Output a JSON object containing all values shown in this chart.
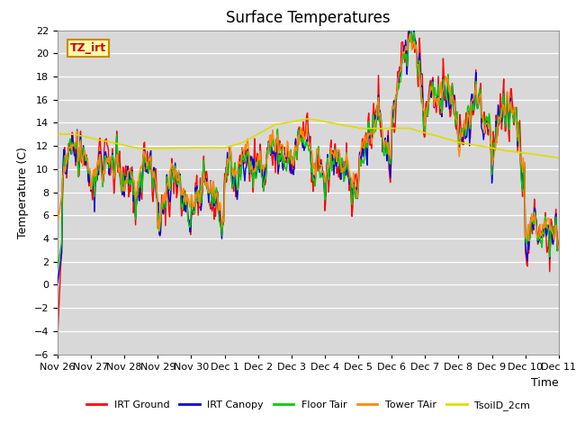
{
  "title": "Surface Temperatures",
  "xlabel": "Time",
  "ylabel": "Temperature (C)",
  "ylim": [
    -6,
    22
  ],
  "yticks": [
    -6,
    -4,
    -2,
    0,
    2,
    4,
    6,
    8,
    10,
    12,
    14,
    16,
    18,
    20,
    22
  ],
  "plot_bg_color": "#d8d8d8",
  "annotation_text": "TZ_irt",
  "annotation_bg": "#ffffaa",
  "annotation_border": "#cc8800",
  "legend_entries": [
    "IRT Ground",
    "IRT Canopy",
    "Floor Tair",
    "Tower TAir",
    "TsoilD_2cm"
  ],
  "line_colors": [
    "#ff0000",
    "#0000dd",
    "#00cc00",
    "#ff8800",
    "#dddd00"
  ],
  "x_tick_labels": [
    "Nov 26",
    "Nov 27",
    "Nov 28",
    "Nov 29",
    "Nov 30",
    "Dec 1",
    "Dec 2",
    "Dec 3",
    "Dec 4",
    "Dec 5",
    "Dec 6",
    "Dec 7",
    "Dec 8",
    "Dec 9",
    "Dec 10",
    "Dec 11"
  ],
  "title_fontsize": 12,
  "axis_fontsize": 9,
  "tick_fontsize": 8
}
